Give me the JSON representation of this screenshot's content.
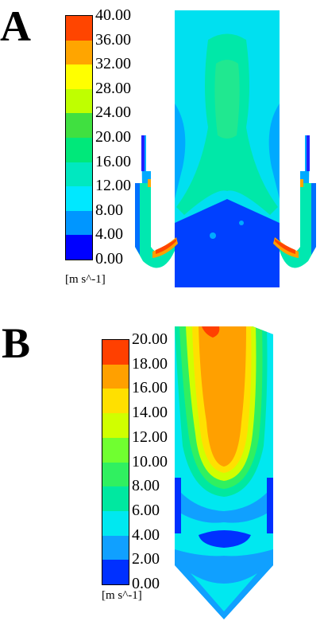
{
  "panels": [
    {
      "letter": "A",
      "unit": "[m s^-1]",
      "ticks": [
        "40.00",
        "36.00",
        "32.00",
        "28.00",
        "24.00",
        "20.00",
        "16.00",
        "12.00",
        "8.00",
        "4.00",
        "0.00"
      ],
      "colors": [
        "#ff4500",
        "#ffa500",
        "#ffff00",
        "#bfff00",
        "#40e040",
        "#00e87a",
        "#00e8c0",
        "#00e8ff",
        "#0096ff",
        "#0000ff"
      ]
    },
    {
      "letter": "B",
      "unit": "[m s^-1]",
      "ticks": [
        "20.00",
        "18.00",
        "16.00",
        "14.00",
        "12.00",
        "10.00",
        "8.00",
        "6.00",
        "4.00",
        "2.00",
        "0.00"
      ],
      "colors": [
        "#ff4000",
        "#ffa000",
        "#ffe000",
        "#d0ff00",
        "#70ff30",
        "#30f060",
        "#00e8a0",
        "#00e8f0",
        "#10a0ff",
        "#0030ff"
      ]
    }
  ]
}
